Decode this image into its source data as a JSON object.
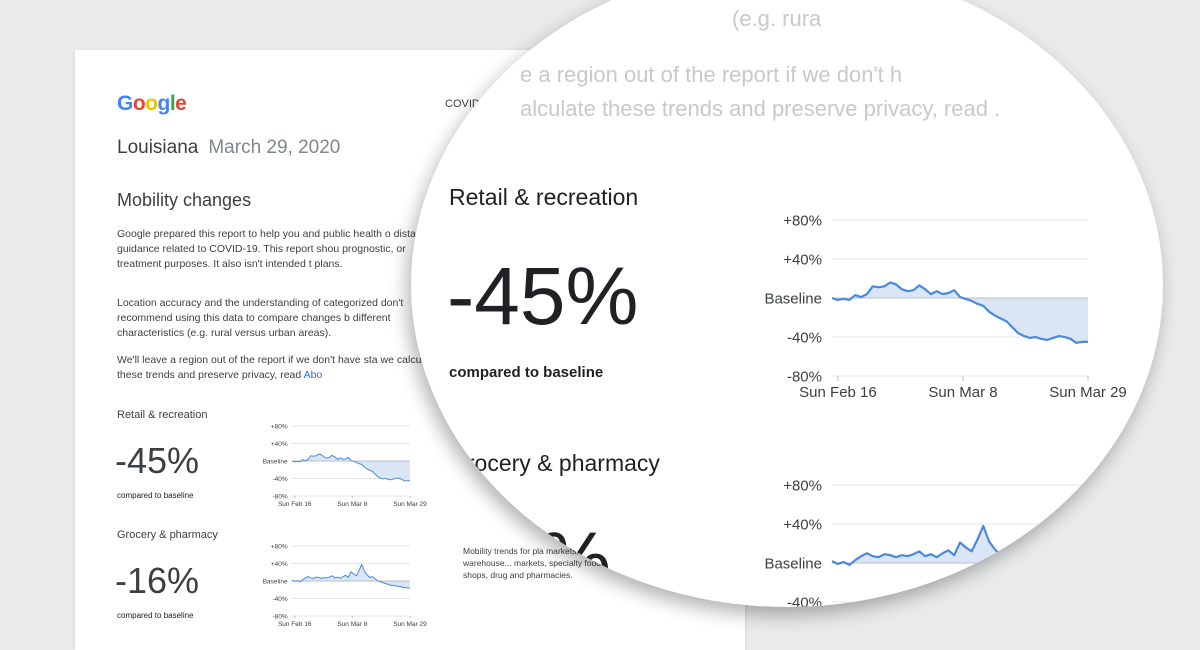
{
  "brand": {
    "letters": [
      "G",
      "o",
      "o",
      "g",
      "l",
      "e"
    ],
    "colors": [
      "#4285F4",
      "#EA4335",
      "#FBBC05",
      "#4285F4",
      "#34A853",
      "#EA4335"
    ]
  },
  "report": {
    "header": "COVID-19 Co",
    "region": "Louisiana",
    "date": "March 29, 2020",
    "section_title": "Mobility changes",
    "paragraphs": [
      "Google prepared this report to help you and public health o distancing guidance related to COVID-19. This report shou prognostic, or treatment purposes. It also isn't intended t plans.",
      "Location accuracy and the understanding of categorized don't recommend using this data to compare changes b different characteristics (e.g. rural versus urban areas).",
      "We'll leave a region out of the report if we don't have sta we calculate these trends and preserve privacy, read "
    ],
    "link_text": "Abo",
    "side_note": "Mobility trends for pla markets, food warehouse... markets, specialty food shops, drug and pharmacies."
  },
  "zoom_ghost": [
    "(e.g. rura",
    "e a region out of the report if we don't h",
    "alculate these trends and preserve privacy, read ."
  ],
  "compared_label": "compared to baseline",
  "accent_color": "#4a89dc",
  "fill_color": "#dae6f6",
  "categories": [
    {
      "name": "Retail & recreation",
      "value_label": "-45%"
    },
    {
      "name": "Grocery & pharmacy",
      "value_label": "-16%",
      "zoom_value_label": "16%"
    }
  ],
  "chart_data": [
    {
      "type": "area",
      "title": "Retail & recreation",
      "y_ticks": [
        "+80%",
        "+40%",
        "Baseline",
        "-40%",
        "-80%"
      ],
      "x_ticks": [
        "Sun Feb 16",
        "Sun Mar 8",
        "Sun Mar 29"
      ],
      "ylim": [
        -80,
        80
      ],
      "x_start": "2020-02-15",
      "x_end": "2020-03-29",
      "values": [
        0,
        -2,
        -1,
        -2,
        3,
        1,
        4,
        12,
        11,
        12,
        16,
        14,
        9,
        7,
        8,
        13,
        9,
        4,
        7,
        4,
        5,
        8,
        1,
        -1,
        -3,
        -6,
        -8,
        -14,
        -18,
        -21,
        -24,
        -30,
        -36,
        -39,
        -41,
        -40,
        -42,
        -43,
        -41,
        -39,
        -40,
        -42,
        -46,
        -45,
        -45
      ]
    },
    {
      "type": "area",
      "title": "Grocery & pharmacy",
      "y_ticks": [
        "+80%",
        "+40%",
        "Baseline",
        "-40%",
        "-80%"
      ],
      "x_ticks": [
        "Sun Feb 16",
        "Sun Mar 8",
        "Sun Mar 29"
      ],
      "ylim": [
        -80,
        80
      ],
      "x_start": "2020-02-15",
      "x_end": "2020-03-29",
      "values": [
        2,
        -1,
        1,
        -2,
        3,
        7,
        10,
        7,
        6,
        9,
        8,
        6,
        8,
        7,
        9,
        12,
        7,
        9,
        6,
        10,
        13,
        8,
        21,
        16,
        12,
        24,
        38,
        22,
        14,
        8,
        10,
        5,
        0,
        -2,
        -4,
        -6,
        -8,
        -10,
        -10,
        -12,
        -12,
        -14,
        -15,
        -16,
        -16
      ]
    }
  ]
}
